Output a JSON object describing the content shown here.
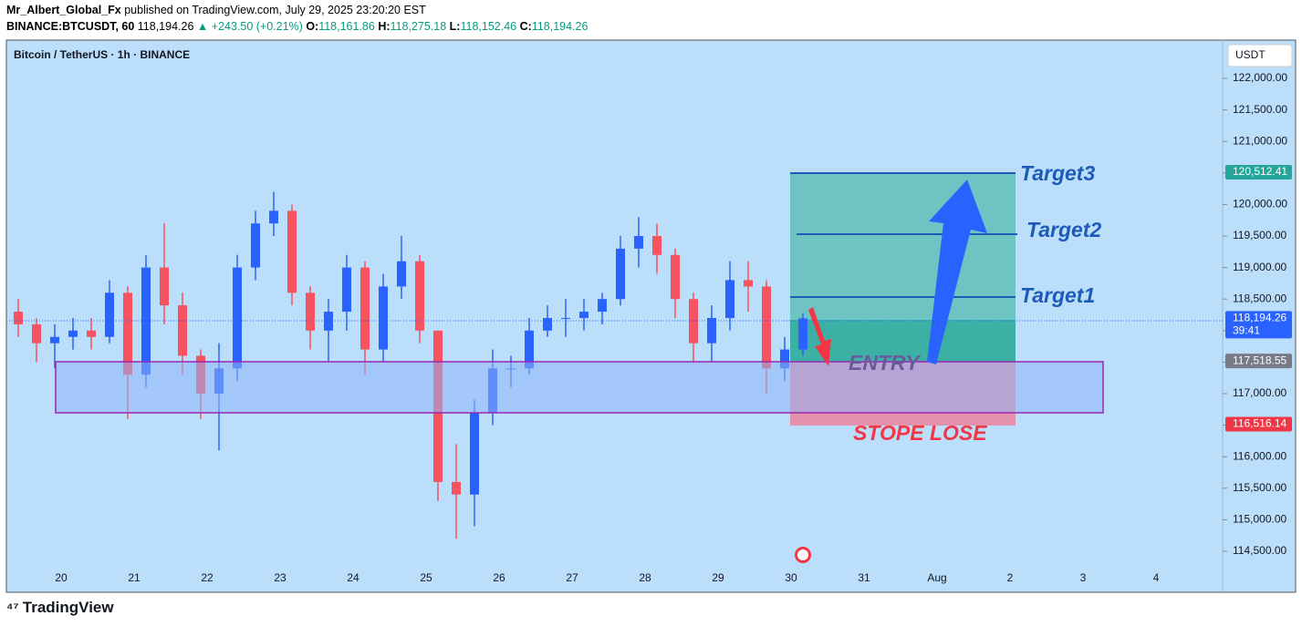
{
  "header": {
    "author": "Mr_Albert_Global_Fx",
    "published": "published on TradingView.com, July 29, 2025 23:20:20 EST",
    "symbol": "BINANCE:BTCUSDT, 60",
    "last": "118,194.26",
    "change": "▲ +243.50 (+0.21%)",
    "ohlc": [
      {
        "k": "O:",
        "v": "118,161.86"
      },
      {
        "k": "H:",
        "v": "118,275.18"
      },
      {
        "k": "L:",
        "v": "118,152.46"
      },
      {
        "k": "C:",
        "v": "118,194.26"
      }
    ]
  },
  "chart_data": {
    "type": "candlestick",
    "title": "Bitcoin / TetherUS · 1h · BINANCE",
    "currency": "USDT",
    "up_color": "#2962ff",
    "down_color": "#f7525f",
    "x_labels": [
      "20",
      "21",
      "22",
      "23",
      "24",
      "25",
      "26",
      "27",
      "28",
      "29",
      "30",
      "31",
      "Aug",
      "2",
      "3",
      "4"
    ],
    "open": [
      118300,
      118100,
      117800,
      117900,
      118000,
      117900,
      118600,
      117300,
      119000,
      118400,
      117600,
      117000,
      117400,
      119000,
      119700,
      119900,
      118600,
      118000,
      118300,
      119000,
      117700,
      118700,
      119100,
      118000,
      115600,
      115400,
      116700,
      117400,
      117400,
      118000,
      118200,
      118200,
      118300,
      118500,
      119300,
      119500,
      119200,
      118500,
      117800,
      118200,
      118800,
      118700,
      117400,
      117700
    ],
    "high": [
      118500,
      118200,
      118100,
      118200,
      118200,
      118800,
      118700,
      119200,
      119700,
      118600,
      117700,
      117800,
      119200,
      119900,
      120200,
      120000,
      118700,
      118500,
      119200,
      119100,
      118900,
      119500,
      119200,
      118000,
      116200,
      116900,
      117700,
      117600,
      118200,
      118400,
      118500,
      118500,
      118600,
      119500,
      119800,
      119700,
      119300,
      118600,
      118400,
      119100,
      119100,
      118800,
      117900,
      118275
    ],
    "low": [
      117900,
      117500,
      117400,
      117700,
      117700,
      117800,
      116600,
      117100,
      118100,
      117300,
      116600,
      116100,
      117200,
      118800,
      119500,
      118400,
      117700,
      117500,
      118000,
      117300,
      117500,
      118500,
      117800,
      115300,
      114700,
      114900,
      116500,
      117100,
      117300,
      117900,
      117900,
      118000,
      118100,
      118400,
      119000,
      118900,
      118200,
      117500,
      117500,
      118000,
      118300,
      117000,
      117200,
      117600
    ],
    "close": [
      118100,
      117800,
      117900,
      118000,
      117900,
      118600,
      117300,
      119000,
      118400,
      117600,
      117000,
      117400,
      119000,
      119700,
      119900,
      118600,
      118000,
      118300,
      119000,
      117700,
      118700,
      119100,
      118000,
      115600,
      115400,
      116700,
      117400,
      117400,
      118000,
      118200,
      118200,
      118300,
      118500,
      119300,
      119500,
      119200,
      118500,
      117800,
      118200,
      118800,
      118700,
      117400,
      117700,
      118194
    ],
    "ylim": [
      113850,
      122607
    ],
    "yticks": [
      {
        "value": 114500,
        "label": "114,500.00"
      },
      {
        "value": 115000,
        "label": "115,000.00"
      },
      {
        "value": 115500,
        "label": "115,500.00"
      },
      {
        "value": 116000,
        "label": "116,000.00"
      },
      {
        "value": 116500,
        "label": "116,500.00"
      },
      {
        "value": 117000,
        "label": "117,000.00"
      },
      {
        "value": 117500,
        "label": "117,500.00"
      },
      {
        "value": 118000,
        "label": "118,000.00"
      },
      {
        "value": 118500,
        "label": "118,500.00"
      },
      {
        "value": 119000,
        "label": "119,000.00"
      },
      {
        "value": 119500,
        "label": "119,500.00"
      },
      {
        "value": 120000,
        "label": "120,000.00"
      },
      {
        "value": 120500,
        "label": "120,500.00"
      },
      {
        "value": 121000,
        "label": "121,000.00"
      },
      {
        "value": 121500,
        "label": "121,500.00"
      },
      {
        "value": 122000,
        "label": "122,000.00"
      }
    ],
    "price_tags": [
      {
        "value": 120512.41,
        "label": "120,512.41",
        "color": "#26a69a"
      },
      {
        "value": 118194.26,
        "label": "118,194.26",
        "color": "#2962ff",
        "sub": "39:41"
      },
      {
        "value": 117518.55,
        "label": "117,518.55",
        "color": "#787b86"
      },
      {
        "value": 116516.14,
        "label": "116,516.14",
        "color": "#f23645"
      }
    ],
    "annotations": {
      "target3": "Target3",
      "target2": "Target2",
      "target1": "Target1",
      "entry": "ENTRY",
      "stop": "STOPE LOSE"
    }
  },
  "footer": {
    "brand": "TradingView"
  }
}
